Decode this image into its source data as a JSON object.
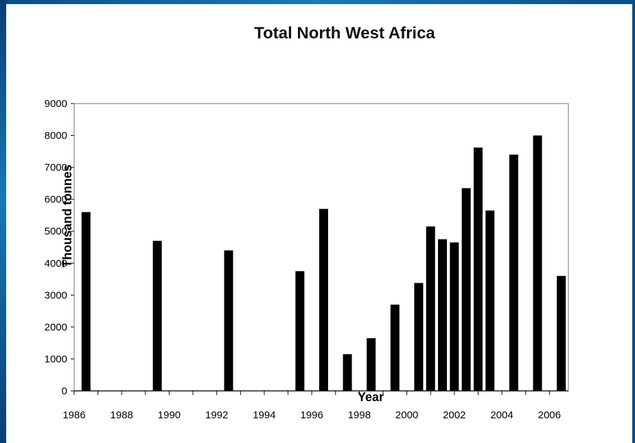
{
  "chart_data": {
    "type": "bar",
    "title": "Total North West Africa",
    "xlabel": "Year",
    "ylabel": "Thousand tonnes",
    "xlim": [
      1986,
      2006.8
    ],
    "ylim": [
      0,
      9000
    ],
    "yticks": [
      "0",
      "1000",
      "2000",
      "3000",
      "4000",
      "5000",
      "6000",
      "7000",
      "8000",
      "9000"
    ],
    "xticks": [
      "1986",
      "1988",
      "1990",
      "1992",
      "1994",
      "1996",
      "1998",
      "2000",
      "2002",
      "2004",
      "2006"
    ],
    "grid": false,
    "legend": "none",
    "bar_color": "#000000",
    "x": [
      1986.5,
      1989.5,
      1992.5,
      1995.5,
      1996.5,
      1997.5,
      1998.5,
      1999.5,
      2000.5,
      2001,
      2001.5,
      2002,
      2002.5,
      2003,
      2003.5,
      2004.5,
      2005.5,
      2006.5
    ],
    "values": [
      5600,
      4700,
      4400,
      3750,
      5700,
      1150,
      1650,
      2700,
      3380,
      5150,
      4750,
      4650,
      6350,
      7620,
      5650,
      7400,
      8000,
      3600
    ]
  }
}
